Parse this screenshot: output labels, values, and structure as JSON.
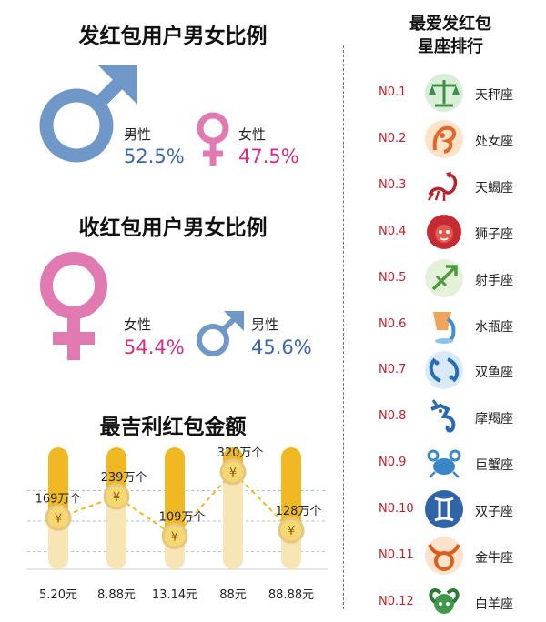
{
  "send_section": {
    "title": "发红包用户男女比例",
    "male": {
      "label": "男性",
      "value": "52.5%"
    },
    "female": {
      "label": "女性",
      "value": "47.5%"
    }
  },
  "receive_section": {
    "title": "收红包用户男女比例",
    "female": {
      "label": "女性",
      "value": "54.4%"
    },
    "male": {
      "label": "男性",
      "value": "45.6%"
    }
  },
  "colors": {
    "male": "#6f97c8",
    "male_text": "#3d67ad",
    "female": "#e07ab0",
    "female_text": "#d62d82",
    "rank_number": "#c81e27",
    "bar_gold": "#f0b823",
    "bar_light": "#f7e5b4"
  },
  "ranking": {
    "title_line1": "最爱发红包",
    "title_line2": "星座排行",
    "items": [
      {
        "no": "N0.1",
        "name": "天秤座",
        "icon": "libra-icon"
      },
      {
        "no": "N0.2",
        "name": "处女座",
        "icon": "virgo-icon"
      },
      {
        "no": "N0.3",
        "name": "天蝎座",
        "icon": "scorpio-icon"
      },
      {
        "no": "N0.4",
        "name": "狮子座",
        "icon": "leo-icon"
      },
      {
        "no": "N0.5",
        "name": "射手座",
        "icon": "sagittarius-icon"
      },
      {
        "no": "N0.6",
        "name": "水瓶座",
        "icon": "aquarius-icon"
      },
      {
        "no": "N0.7",
        "name": "双鱼座",
        "icon": "pisces-icon"
      },
      {
        "no": "N0.8",
        "name": "摩羯座",
        "icon": "capricorn-icon"
      },
      {
        "no": "N0.9",
        "name": "巨蟹座",
        "icon": "cancer-icon"
      },
      {
        "no": "N0.10",
        "name": "双子座",
        "icon": "gemini-icon"
      },
      {
        "no": "N0.11",
        "name": "金牛座",
        "icon": "taurus-icon"
      },
      {
        "no": "N0.12",
        "name": "白羊座",
        "icon": "aries-icon"
      }
    ]
  },
  "chart_data": {
    "type": "line",
    "title": "最吉利红包金额",
    "categories": [
      "5.20元",
      "8.88元",
      "13.14元",
      "88元",
      "88.88元"
    ],
    "values": [
      169,
      239,
      109,
      320,
      128
    ],
    "value_labels": [
      "169万个",
      "239万个",
      "109万个",
      "320万个",
      "128万个"
    ],
    "marker_symbol": "¥",
    "ylim": [
      0,
      400
    ],
    "grid": true,
    "line_style": "dashed"
  }
}
